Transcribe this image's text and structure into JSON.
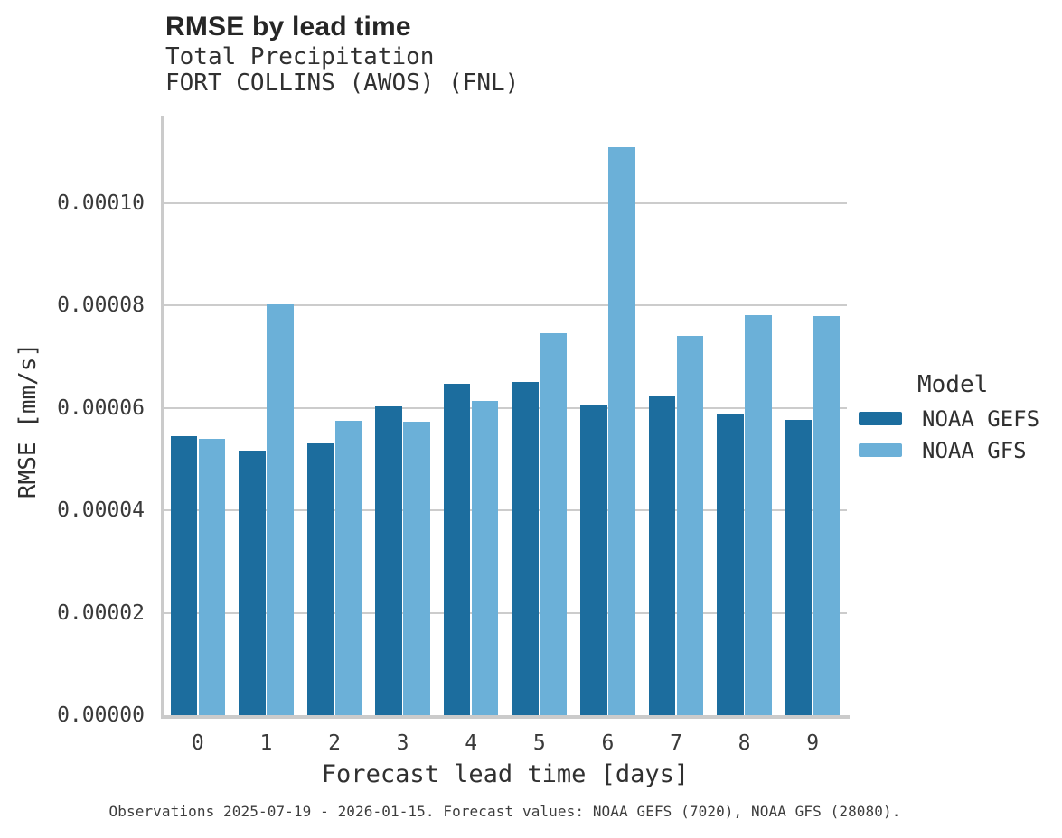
{
  "header": {
    "title": "RMSE by lead time",
    "subtitle1": "Total Precipitation",
    "subtitle2": "FORT COLLINS (AWOS) (FNL)"
  },
  "legend": {
    "title": "Model"
  },
  "caption": "Observations 2025-07-19 - 2026-01-15. Forecast values: NOAA GEFS (7020), NOAA GFS (28080).",
  "chart_data": {
    "type": "bar",
    "title": "RMSE by lead time",
    "subtitle": [
      "Total Precipitation",
      "FORT COLLINS (AWOS) (FNL)"
    ],
    "xlabel": "Forecast lead time [days]",
    "ylabel": "RMSE [mm/s]",
    "categories": [
      "0",
      "1",
      "2",
      "3",
      "4",
      "5",
      "6",
      "7",
      "8",
      "9"
    ],
    "series": [
      {
        "name": "NOAA GEFS",
        "color": "#1C6D9E",
        "values": [
          5.45e-05,
          5.17e-05,
          5.3e-05,
          6.04e-05,
          6.47e-05,
          6.51e-05,
          6.07e-05,
          6.25e-05,
          5.87e-05,
          5.76e-05
        ]
      },
      {
        "name": "NOAA GFS",
        "color": "#6BB0D8",
        "values": [
          5.4e-05,
          8.03e-05,
          5.75e-05,
          5.74e-05,
          6.14e-05,
          7.46e-05,
          0.000111,
          7.41e-05,
          7.81e-05,
          7.8e-05
        ]
      }
    ],
    "ylim": [
      0,
      0.0001171
    ],
    "yticks": [
      {
        "value": 0.0,
        "label": "0.00000"
      },
      {
        "value": 2e-05,
        "label": "0.00002"
      },
      {
        "value": 4e-05,
        "label": "0.00004"
      },
      {
        "value": 6e-05,
        "label": "0.00006"
      },
      {
        "value": 8e-05,
        "label": "0.00008"
      },
      {
        "value": 0.0001,
        "label": "0.00010"
      }
    ],
    "grid": true,
    "legend_position": "right",
    "legend_title": "Model"
  },
  "colors": {
    "background": "#ffffff",
    "gridline": "#cccccc",
    "spine": "#cbcbcb",
    "title_text": "#262626",
    "label_text": "#303030",
    "tick_text": "#3a3a3a",
    "caption_text": "#3d3d3d"
  }
}
